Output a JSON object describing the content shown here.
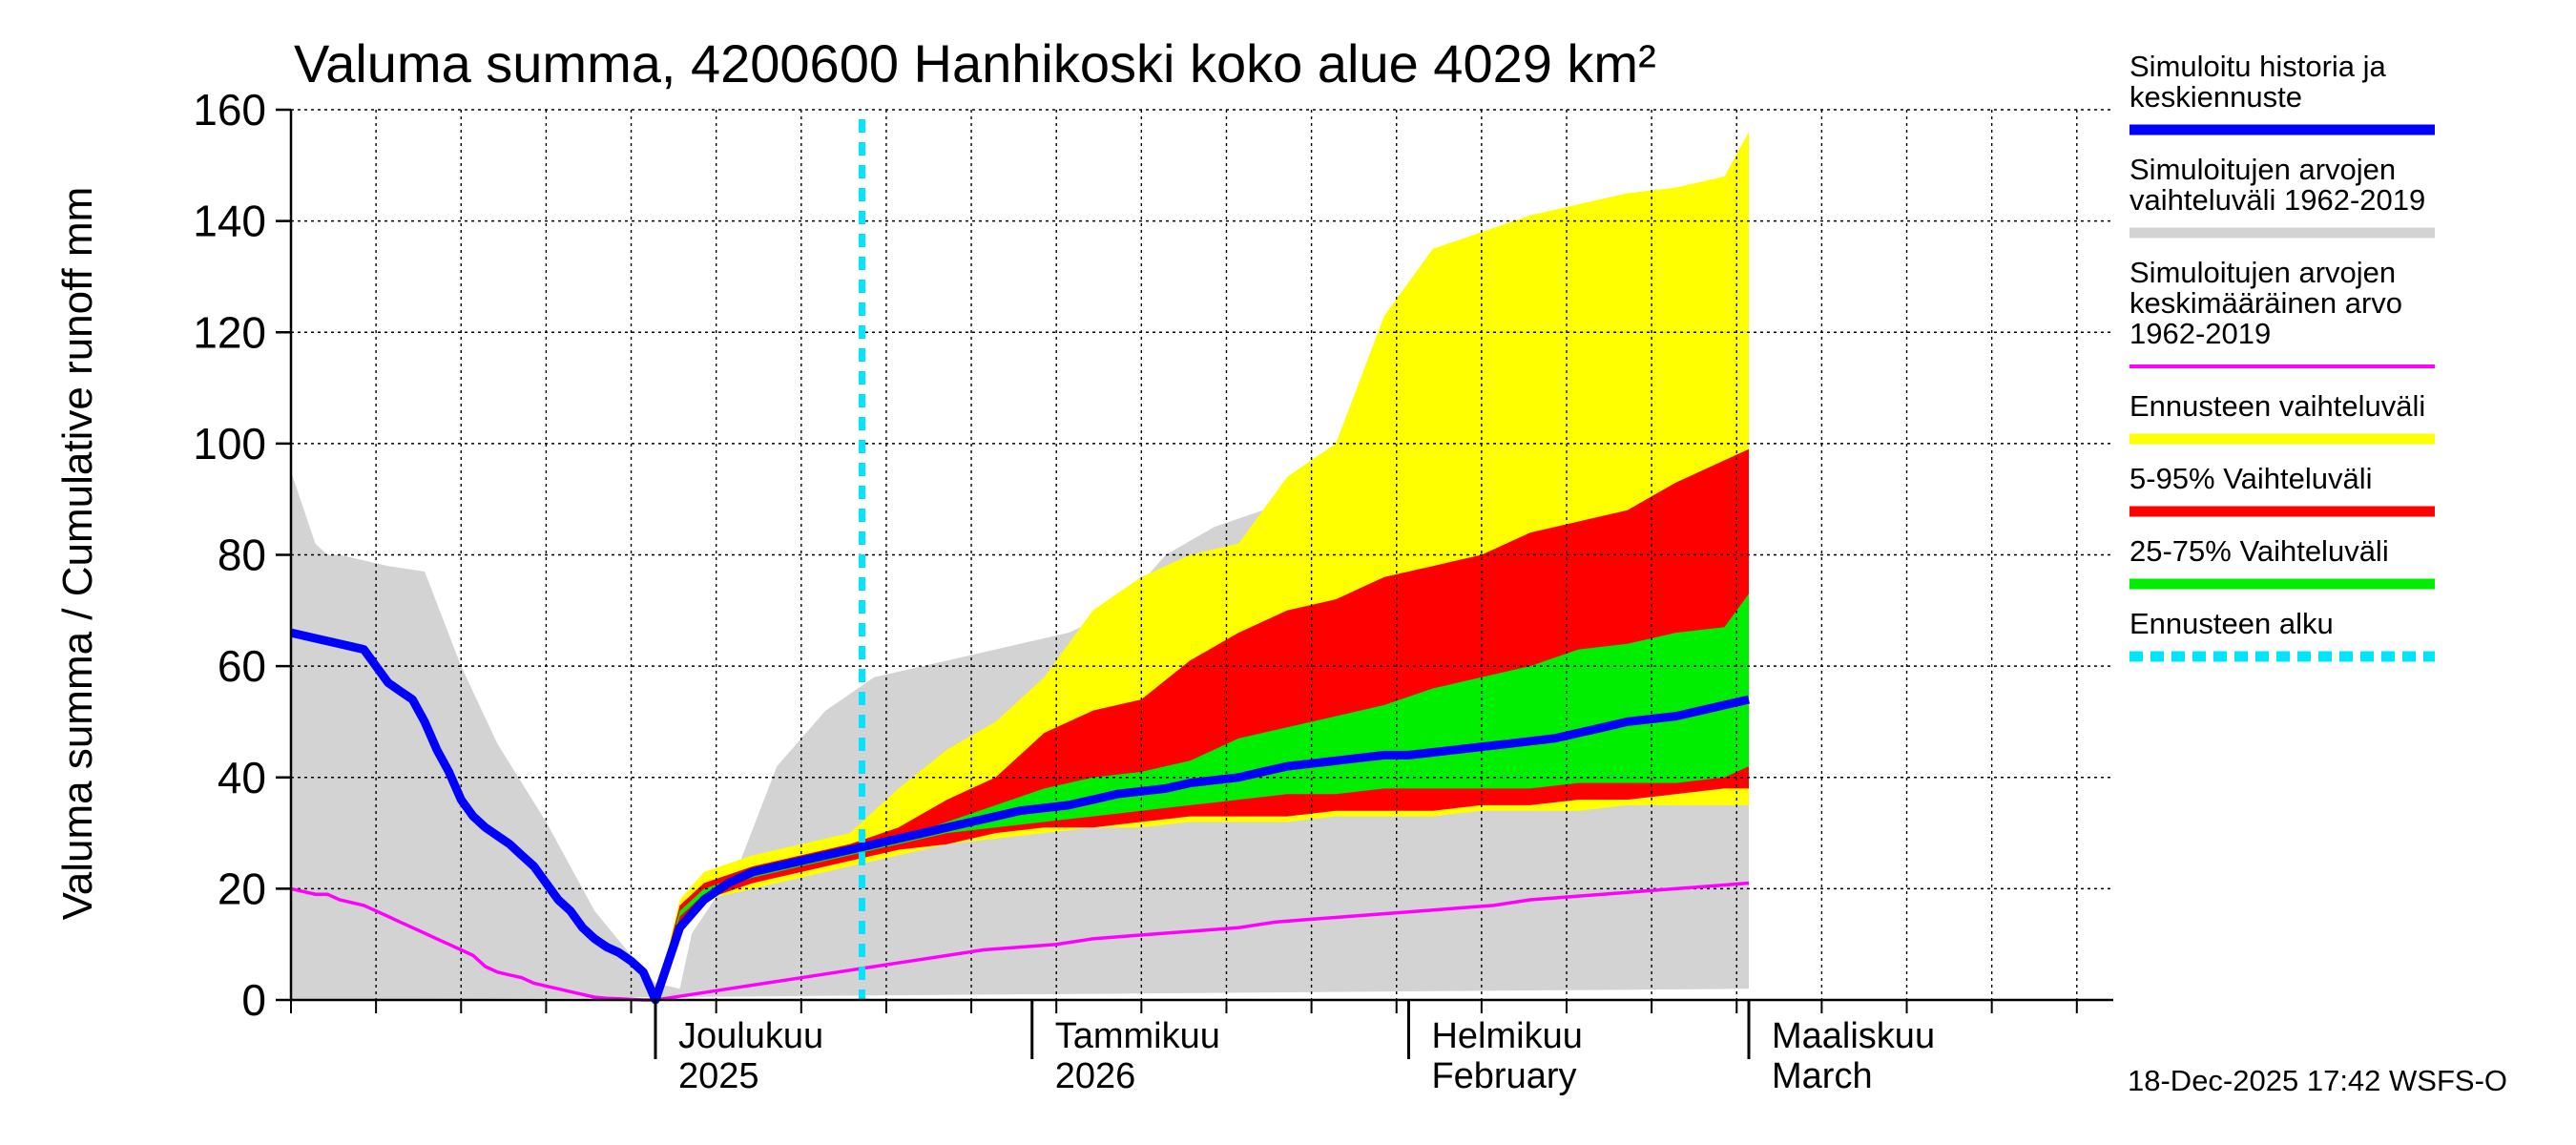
{
  "chart_data": {
    "type": "area",
    "title": "Valuma summa, 4200600 Hanhikoski koko alue 4029 km²",
    "ylabel": "Valuma summa / Cumulative runoff    mm",
    "ylim": [
      0,
      160
    ],
    "yticks": [
      0,
      20,
      40,
      60,
      80,
      100,
      120,
      140,
      160
    ],
    "xlim": [
      "2025-11-01",
      "2026-03-31"
    ],
    "x_month_labels": [
      {
        "date": "2025-12-01",
        "line1": "Joulukuu",
        "line2": "2025"
      },
      {
        "date": "2026-01-01",
        "line1": "Tammikuu",
        "line2": "2026"
      },
      {
        "date": "2026-02-01",
        "line1": "Helmikuu",
        "line2": "February"
      },
      {
        "date": "2026-03-01",
        "line1": "Maaliskuu",
        "line2": "March"
      }
    ],
    "forecast_start": "2025-12-18",
    "timestamp": "18-Dec-2025 17:42 WSFS-O",
    "colors": {
      "history": "#0000ff",
      "hist_range": "#d3d3d3",
      "hist_mean": "#ff00ff",
      "forecast_range": "#ffff00",
      "p5_95": "#ff0000",
      "p25_75": "#00ee00",
      "forecast_start": "#00e5ff",
      "grid": "#000000"
    },
    "series": {
      "hist_range_upper": {
        "x": [
          0,
          2,
          3,
          4,
          8,
          11,
          14,
          17,
          21,
          25,
          28,
          30,
          32,
          33,
          37,
          40,
          44,
          48,
          52,
          56,
          60,
          64,
          68,
          72,
          76,
          80,
          84,
          88,
          92,
          96,
          100,
          104,
          108,
          112,
          116,
          120
        ],
        "y": [
          95,
          82,
          80,
          80,
          78,
          77,
          60,
          46,
          32,
          16,
          8,
          3,
          2,
          12,
          25,
          42,
          52,
          58,
          60,
          62,
          64,
          66,
          70,
          80,
          85,
          88,
          93,
          95,
          97,
          100,
          101,
          103,
          106,
          109,
          112,
          114
        ]
      },
      "hist_range_lower": {
        "x": [
          0,
          120
        ],
        "y": [
          0,
          2
        ]
      },
      "forecast_upper": {
        "x": [
          30,
          32,
          34,
          38,
          42,
          46,
          50,
          54,
          58,
          62,
          66,
          70,
          74,
          78,
          82,
          86,
          90,
          94,
          98,
          102,
          106,
          110,
          114,
          118,
          120
        ],
        "y": [
          0,
          18,
          23,
          26,
          28,
          30,
          38,
          45,
          50,
          58,
          70,
          76,
          80,
          82,
          94,
          100,
          123,
          135,
          138,
          141,
          143,
          145,
          146,
          148,
          156
        ]
      },
      "forecast_lower": {
        "x": [
          30,
          32,
          34,
          38,
          42,
          46,
          50,
          54,
          58,
          62,
          66,
          70,
          74,
          78,
          82,
          86,
          90,
          94,
          98,
          102,
          106,
          110,
          114,
          118,
          120
        ],
        "y": [
          0,
          14,
          18,
          20,
          22,
          24,
          26,
          28,
          29,
          30,
          31,
          31,
          32,
          32,
          32,
          33,
          33,
          33,
          34,
          34,
          34,
          35,
          35,
          35,
          35
        ]
      },
      "p95": {
        "x": [
          30,
          32,
          34,
          38,
          42,
          46,
          50,
          54,
          58,
          62,
          66,
          70,
          74,
          78,
          82,
          86,
          90,
          94,
          98,
          102,
          106,
          110,
          114,
          118,
          120
        ],
        "y": [
          0,
          17,
          21,
          24,
          26,
          28,
          31,
          36,
          40,
          48,
          52,
          54,
          61,
          66,
          70,
          72,
          76,
          78,
          80,
          84,
          86,
          88,
          93,
          97,
          99
        ]
      },
      "p5": {
        "x": [
          30,
          32,
          34,
          38,
          42,
          46,
          50,
          54,
          58,
          62,
          66,
          70,
          74,
          78,
          82,
          86,
          90,
          94,
          98,
          102,
          106,
          110,
          114,
          118,
          120
        ],
        "y": [
          0,
          14,
          18,
          21,
          23,
          25,
          27,
          28,
          30,
          31,
          31,
          32,
          33,
          33,
          33,
          34,
          34,
          34,
          35,
          35,
          36,
          36,
          37,
          38,
          38
        ]
      },
      "p75": {
        "x": [
          30,
          32,
          34,
          38,
          42,
          46,
          50,
          54,
          58,
          62,
          66,
          70,
          74,
          78,
          82,
          86,
          90,
          94,
          98,
          102,
          106,
          110,
          114,
          118,
          120
        ],
        "y": [
          0,
          16,
          20,
          23,
          25,
          27,
          29,
          32,
          35,
          38,
          40,
          41,
          43,
          47,
          49,
          51,
          53,
          56,
          58,
          60,
          63,
          64,
          66,
          67,
          73
        ]
      },
      "p25": {
        "x": [
          30,
          32,
          34,
          38,
          42,
          46,
          50,
          54,
          58,
          62,
          66,
          70,
          74,
          78,
          82,
          86,
          90,
          94,
          98,
          102,
          106,
          110,
          114,
          118,
          120
        ],
        "y": [
          0,
          15,
          19,
          22,
          24,
          26,
          28,
          30,
          31,
          32,
          33,
          34,
          35,
          36,
          37,
          37,
          38,
          38,
          38,
          38,
          39,
          39,
          39,
          40,
          42
        ]
      },
      "history_median": {
        "x": [
          0,
          2,
          4,
          5,
          6,
          7,
          8,
          9,
          10,
          11,
          12,
          13,
          14,
          15,
          16,
          17,
          18,
          19,
          20,
          21,
          22,
          23,
          24,
          25,
          26,
          27,
          28,
          29,
          30,
          32,
          34,
          36,
          38,
          40,
          42,
          44,
          46,
          48,
          50,
          52,
          54,
          56,
          58,
          60,
          62,
          64,
          66,
          68,
          70,
          72,
          74,
          76,
          78,
          80,
          82,
          84,
          86,
          88,
          90,
          92,
          94,
          96,
          98,
          100,
          102,
          104,
          106,
          108,
          110,
          112,
          114,
          116,
          117,
          118,
          120
        ],
        "y": [
          66,
          65,
          64,
          63.5,
          63,
          60,
          57,
          55.5,
          54,
          50,
          45,
          41,
          36,
          33,
          31,
          29.5,
          28,
          26,
          24,
          21,
          18,
          16,
          13,
          11,
          9.5,
          8.5,
          7,
          5,
          0,
          13,
          18,
          21,
          23,
          24,
          25,
          26,
          27,
          28,
          29,
          30,
          31,
          32,
          33,
          34,
          34.5,
          35,
          36,
          37,
          37.5,
          38,
          39,
          39.5,
          40,
          41,
          42,
          42.5,
          43,
          43.5,
          44,
          44,
          44.5,
          45,
          45.5,
          46,
          46.5,
          47,
          48,
          49,
          50,
          50.5,
          51,
          52,
          52.5,
          53,
          54
        ]
      },
      "hist_mean": {
        "x": [
          0,
          2,
          3,
          4,
          6,
          7,
          8,
          9,
          10,
          11,
          12,
          13,
          14,
          15,
          16,
          17,
          18,
          19,
          20,
          21,
          22,
          23,
          24,
          25,
          26,
          27,
          28,
          29,
          30,
          33,
          36,
          39,
          42,
          45,
          48,
          51,
          54,
          57,
          60,
          63,
          66,
          69,
          72,
          75,
          78,
          81,
          84,
          87,
          90,
          93,
          96,
          99,
          102,
          105,
          108,
          111,
          114,
          117,
          120
        ],
        "y": [
          20,
          19,
          19,
          18,
          17,
          16,
          15,
          14,
          13,
          12,
          11,
          10,
          9,
          8,
          6,
          5,
          4.5,
          4,
          3,
          2.5,
          2,
          1.5,
          1,
          0.5,
          0.3,
          0.2,
          0.1,
          0,
          0,
          1,
          2,
          3,
          4,
          5,
          6,
          7,
          8,
          9,
          9.5,
          10,
          11,
          11.5,
          12,
          12.5,
          13,
          14,
          14.5,
          15,
          15.5,
          16,
          16.5,
          17,
          18,
          18.5,
          19,
          19.5,
          20,
          20.5,
          21
        ]
      }
    },
    "legend": [
      {
        "key": "history",
        "lines": [
          "Simuloitu historia ja",
          "keskiennuste"
        ],
        "color": "#0000ff",
        "style": "solid"
      },
      {
        "key": "hist_range",
        "lines": [
          "Simuloitujen arvojen",
          "vaihteluväli 1962-2019"
        ],
        "color": "#d3d3d3",
        "style": "solid"
      },
      {
        "key": "hist_mean",
        "lines": [
          "Simuloitujen arvojen",
          "keskimääräinen arvo",
          "   1962-2019"
        ],
        "color": "#ff00ff",
        "style": "thin"
      },
      {
        "key": "forecast_range",
        "lines": [
          "Ennusteen vaihteluväli"
        ],
        "color": "#ffff00",
        "style": "solid"
      },
      {
        "key": "p5_95",
        "lines": [
          "5-95% Vaihteluväli"
        ],
        "color": "#ff0000",
        "style": "solid"
      },
      {
        "key": "p25_75",
        "lines": [
          "25-75% Vaihteluväli"
        ],
        "color": "#00ee00",
        "style": "solid"
      },
      {
        "key": "forecast_start",
        "lines": [
          "Ennusteen alku"
        ],
        "color": "#00e5ff",
        "style": "dashed"
      }
    ]
  }
}
